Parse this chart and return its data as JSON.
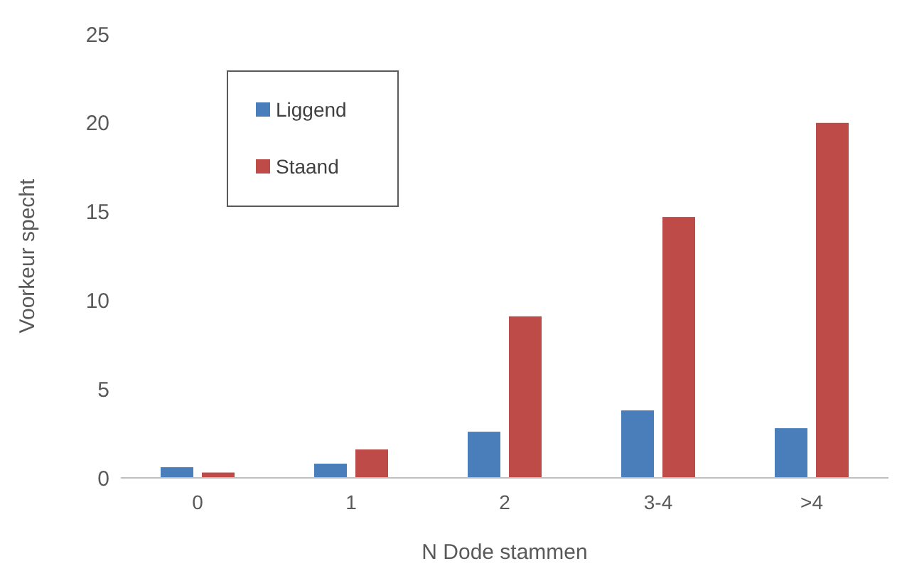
{
  "chart_data": {
    "type": "bar",
    "xlabel": "N Dode stammen",
    "ylabel": "Voorkeur specht",
    "categories": [
      "0",
      "1",
      "2",
      "3-4",
      ">4"
    ],
    "series": [
      {
        "name": "Liggend",
        "color": "#4a7ebb",
        "values": [
          0.6,
          0.8,
          2.6,
          3.8,
          2.8
        ]
      },
      {
        "name": "Staand",
        "color": "#be4b48",
        "values": [
          0.3,
          1.6,
          9.1,
          14.7,
          20.0
        ]
      }
    ],
    "ylim": [
      0,
      25
    ],
    "yticks": [
      0,
      5,
      10,
      15,
      20,
      25
    ],
    "grid": false,
    "legend": "top left"
  }
}
